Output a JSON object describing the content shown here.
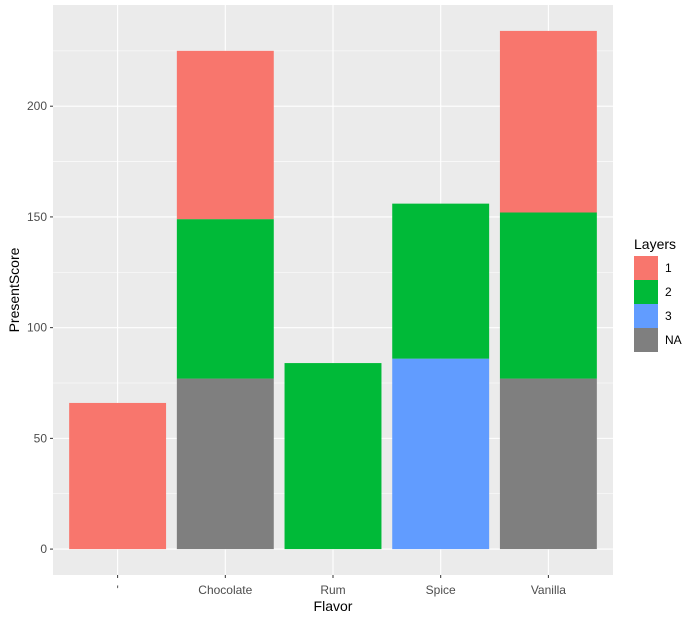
{
  "chart_data": {
    "type": "bar",
    "stacked": true,
    "categories": [
      "'",
      "Chocolate",
      "Rum",
      "Spice",
      "Vanilla"
    ],
    "xlabel": "Flavor",
    "ylabel": "PresentScore",
    "ylim": [
      0,
      245
    ],
    "yticks": [
      0,
      50,
      100,
      150,
      200
    ],
    "grid": true,
    "legend": {
      "title": "Layers",
      "position": "right",
      "entries": [
        "1",
        "2",
        "3",
        "NA"
      ]
    },
    "series": [
      {
        "name": "NA",
        "color": "#7f7f7f",
        "values": [
          0,
          77,
          0,
          0,
          77
        ]
      },
      {
        "name": "3",
        "color": "#619cff",
        "values": [
          0,
          0,
          0,
          86,
          0
        ]
      },
      {
        "name": "2",
        "color": "#00ba38",
        "values": [
          0,
          72,
          84,
          70,
          75
        ]
      },
      {
        "name": "1",
        "color": "#f8766d",
        "values": [
          66,
          76,
          0,
          0,
          82
        ]
      }
    ],
    "legend_colors": {
      "1": "#f8766d",
      "2": "#00ba38",
      "3": "#619cff",
      "NA": "#7f7f7f"
    }
  }
}
